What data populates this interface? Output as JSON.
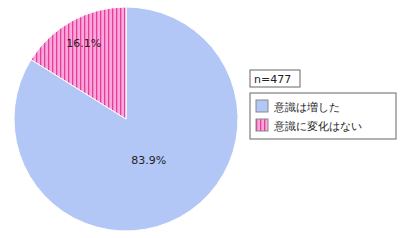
{
  "chart_data": {
    "type": "pie",
    "categories": [
      "意識は増した",
      "意識に変化はない"
    ],
    "values": [
      83.9,
      16.1
    ],
    "value_labels": [
      "83.9%",
      "16.1%"
    ],
    "colors": [
      "#b3c7f7",
      "#ffa6dc"
    ],
    "data_labels": true,
    "annotations": [
      "n=477"
    ],
    "legend": "right"
  }
}
